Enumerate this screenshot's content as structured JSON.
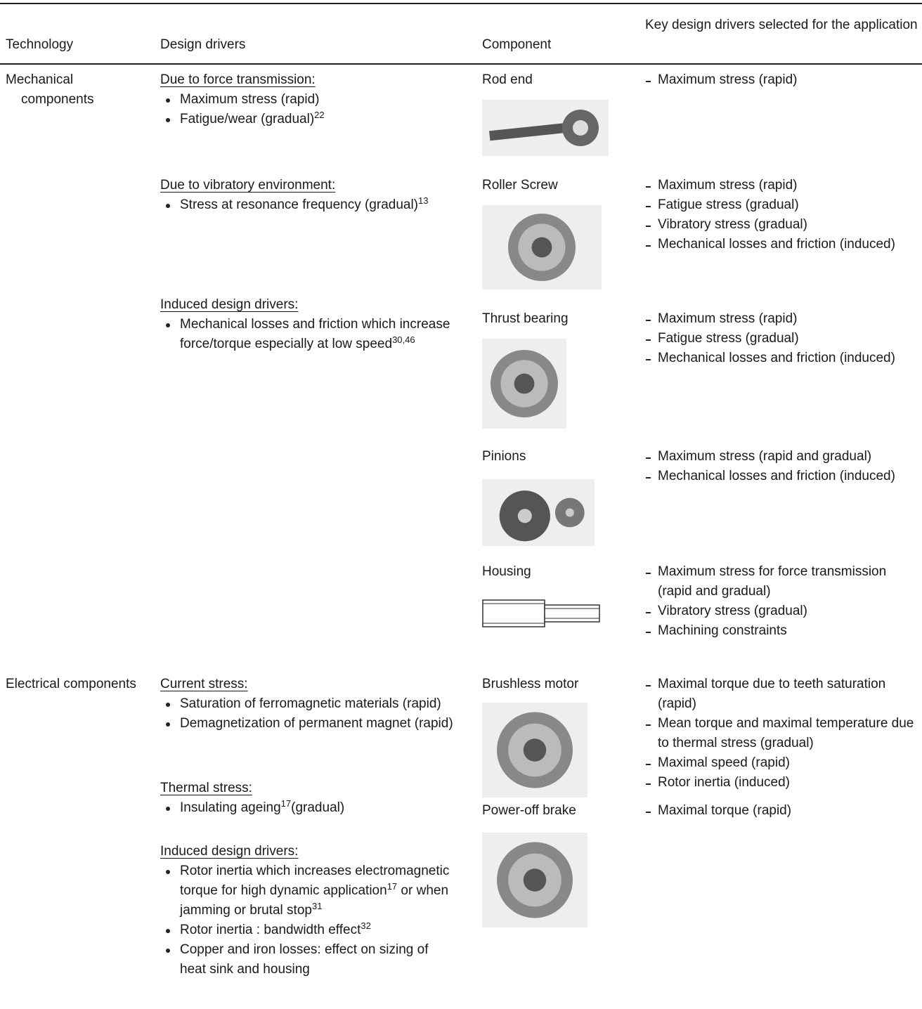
{
  "table": {
    "header": [
      "Technology",
      "Design drivers",
      "Component",
      "Key design drivers selected for the application"
    ],
    "sections": [
      {
        "technology": "Mechanical components",
        "design_groups": [
          {
            "heading": "Due to force transmission:",
            "items": [
              [
                {
                  "text": "Maximum stress (rapid)"
                }
              ],
              [
                {
                  "text": "Fatigue/wear (gradual)"
                },
                {
                  "sup": "22"
                }
              ]
            ]
          },
          {
            "heading": "Due to vibratory environment:",
            "items": [
              [
                {
                  "text": "Stress at resonance frequency (gradual)"
                },
                {
                  "sup": "13"
                }
              ]
            ]
          },
          {
            "heading": "Induced design drivers:",
            "items": [
              [
                {
                  "text": "Mechanical losses and friction which increase force/torque especially at low speed"
                },
                {
                  "sup": "30,46"
                }
              ]
            ]
          }
        ],
        "components": [
          {
            "name": "Rod end",
            "key_drivers": [
              "Maximum stress (rapid)"
            ]
          },
          {
            "name": "Roller Screw",
            "key_drivers": [
              "Maximum stress (rapid)",
              "Fatigue stress (gradual)",
              "Vibratory stress (gradual)",
              "Mechanical losses and friction (induced)"
            ]
          },
          {
            "name": "Thrust bearing",
            "key_drivers": [
              "Maximum stress (rapid)",
              "Fatigue stress (gradual)",
              "Mechanical losses and friction (induced)"
            ]
          },
          {
            "name": "Pinions",
            "key_drivers": [
              "Maximum stress (rapid and gradual)",
              "Mechanical losses and friction (induced)"
            ]
          },
          {
            "name": "Housing",
            "key_drivers": [
              "Maximum stress for force transmission (rapid and gradual)",
              "Vibratory stress (gradual)",
              "Machining constraints"
            ]
          }
        ]
      },
      {
        "technology": "Electrical components",
        "design_groups": [
          {
            "heading": "Current stress:",
            "items": [
              [
                {
                  "text": "Saturation of ferromagnetic materials (rapid)"
                }
              ],
              [
                {
                  "text": "Demagnetization of permanent magnet (rapid)"
                }
              ]
            ]
          },
          {
            "heading": "Thermal stress:",
            "items": [
              [
                {
                  "text": "Insulating ageing"
                },
                {
                  "sup": "17"
                },
                {
                  "text": "(gradual)"
                }
              ]
            ]
          },
          {
            "heading": "Induced design drivers:",
            "items": [
              [
                {
                  "text": "Rotor inertia which increases electromagnetic torque for high dynamic application"
                },
                {
                  "sup": "17"
                },
                {
                  "text": " or when jamming or brutal stop"
                },
                {
                  "sup": "31"
                }
              ],
              [
                {
                  "text": "Rotor inertia : bandwidth effect"
                },
                {
                  "sup": "32"
                }
              ],
              [
                {
                  "text": "Copper and iron losses: effect on sizing of heat sink and housing"
                }
              ]
            ]
          }
        ],
        "components": [
          {
            "name": "Brushless motor",
            "key_drivers": [
              "Maximal torque due to teeth saturation (rapid)",
              "Mean torque and maximal temperature due to thermal stress (gradual)",
              "Maximal speed (rapid)",
              "Rotor inertia (induced)"
            ]
          },
          {
            "name": "Power-off brake",
            "key_drivers": [
              "Maximal torque (rapid)"
            ]
          }
        ]
      }
    ]
  }
}
